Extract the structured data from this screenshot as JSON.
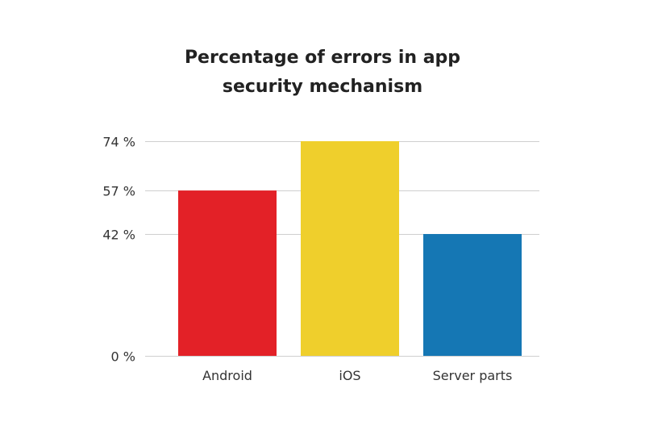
{
  "chart_data": {
    "type": "bar",
    "title_lines": [
      "Percentage of errors in app",
      "security mechanism"
    ],
    "categories": [
      "Android",
      "iOS",
      "Server parts"
    ],
    "values": [
      57,
      74,
      42
    ],
    "colors": [
      "#e32127",
      "#efcf2c",
      "#1577b4"
    ],
    "value_unit": "%",
    "yticks": [
      0,
      42,
      57,
      74
    ],
    "ytick_labels": [
      "0 %",
      "42 %",
      "57 %",
      "74 %"
    ],
    "ylim": [
      0,
      74
    ],
    "grid": true,
    "legend": "none"
  }
}
